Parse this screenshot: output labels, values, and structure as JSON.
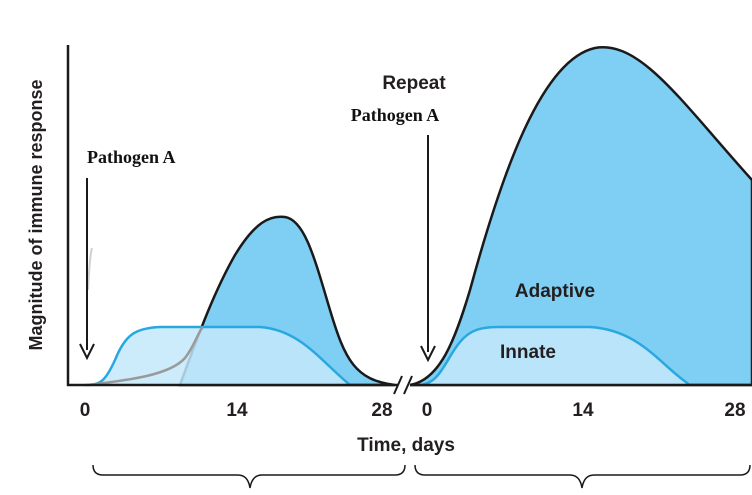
{
  "axes": {
    "y_label": "Magnitude of immune response",
    "x_label": "Time, days",
    "x_ticks": [
      "0",
      "14",
      "28",
      "0",
      "14",
      "28"
    ]
  },
  "annotations": {
    "first_exposure": "Pathogen A",
    "repeat": "Repeat",
    "repeat_pathogen": "Pathogen A",
    "adaptive": "Adaptive",
    "innate": "Innate"
  }
}
